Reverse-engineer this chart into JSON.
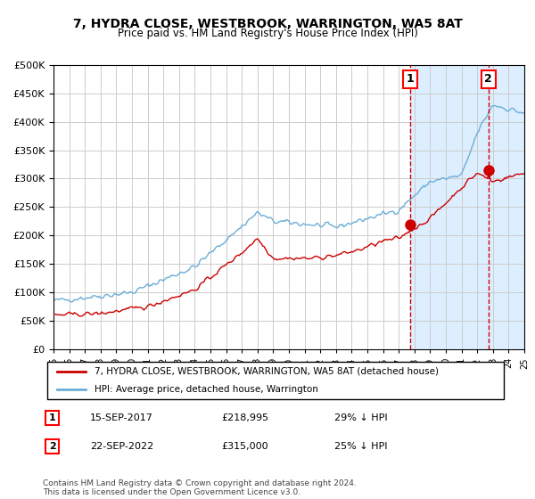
{
  "title": "7, HYDRA CLOSE, WESTBROOK, WARRINGTON, WA5 8AT",
  "subtitle": "Price paid vs. HM Land Registry's House Price Index (HPI)",
  "hpi_label": "HPI: Average price, detached house, Warrington",
  "property_label": "7, HYDRA CLOSE, WESTBROOK, WARRINGTON, WA5 8AT (detached house)",
  "sale1_date": "15-SEP-2017",
  "sale1_price": 218995,
  "sale1_pct": "29% ↓ HPI",
  "sale2_date": "22-SEP-2022",
  "sale2_price": 315000,
  "sale2_pct": "25% ↓ HPI",
  "sale1_year": 2017.71,
  "sale2_year": 2022.72,
  "start_year": 1995.0,
  "end_year": 2025.0,
  "ylim_max": 500000,
  "hpi_color": "#6baed6",
  "property_color": "#cc0000",
  "background_color": "#ddeeff",
  "plot_bg": "#ffffff",
  "grid_color": "#cccccc",
  "vline_color": "#cc0000",
  "footnote": "Contains HM Land Registry data © Crown copyright and database right 2024.\nThis data is licensed under the Open Government Licence v3.0."
}
